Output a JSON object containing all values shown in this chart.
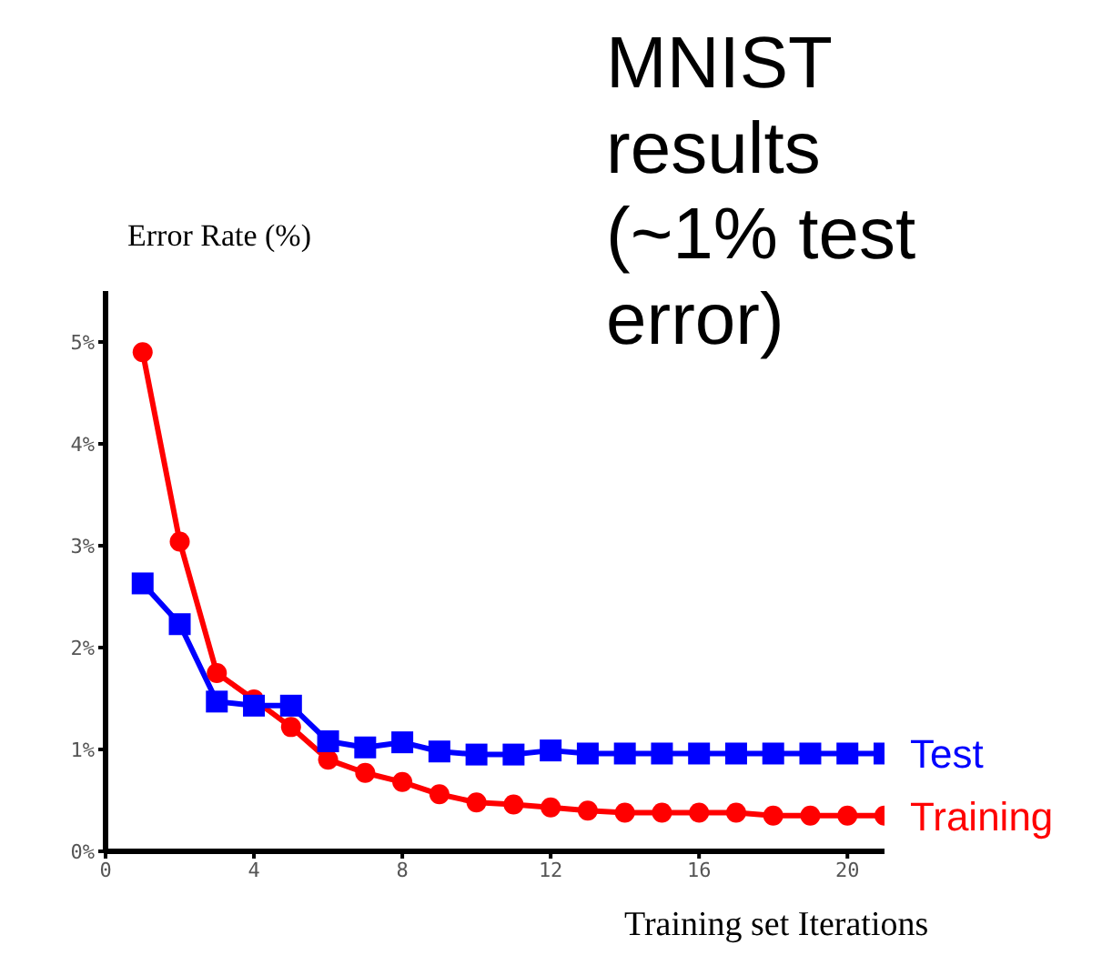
{
  "chart_data": {
    "type": "line",
    "title": "MNIST results (~1% test error)",
    "ylabel": "Error Rate (%)",
    "xlabel": "Training set Iterations",
    "x": [
      1,
      2,
      3,
      4,
      5,
      6,
      7,
      8,
      9,
      10,
      11,
      12,
      13,
      14,
      15,
      16,
      17,
      18,
      19,
      20,
      21
    ],
    "series": [
      {
        "name": "Test",
        "color": "#0000ff",
        "marker": "square",
        "values": [
          2.63,
          2.23,
          1.47,
          1.43,
          1.43,
          1.08,
          1.02,
          1.07,
          0.98,
          0.95,
          0.95,
          0.99,
          0.96,
          0.96,
          0.96,
          0.96,
          0.96,
          0.96,
          0.96,
          0.96,
          0.96
        ]
      },
      {
        "name": "Training",
        "color": "#ff0000",
        "marker": "circle",
        "values": [
          4.9,
          3.04,
          1.75,
          1.49,
          1.22,
          0.9,
          0.77,
          0.68,
          0.56,
          0.48,
          0.46,
          0.43,
          0.4,
          0.38,
          0.38,
          0.38,
          0.38,
          0.35,
          0.35,
          0.35,
          0.35
        ]
      }
    ],
    "xlim": [
      0,
      21
    ],
    "xticks": [
      0,
      4,
      8,
      12,
      16,
      20
    ],
    "ylim": [
      0,
      5.5
    ],
    "yticks": [
      {
        "value": 0,
        "label": "0%"
      },
      {
        "value": 1,
        "label": "1%"
      },
      {
        "value": 2,
        "label": "2%"
      },
      {
        "value": 3,
        "label": "3%"
      },
      {
        "value": 4,
        "label": "4%"
      },
      {
        "value": 5,
        "label": "5%"
      }
    ],
    "grid": false,
    "legend": false
  }
}
